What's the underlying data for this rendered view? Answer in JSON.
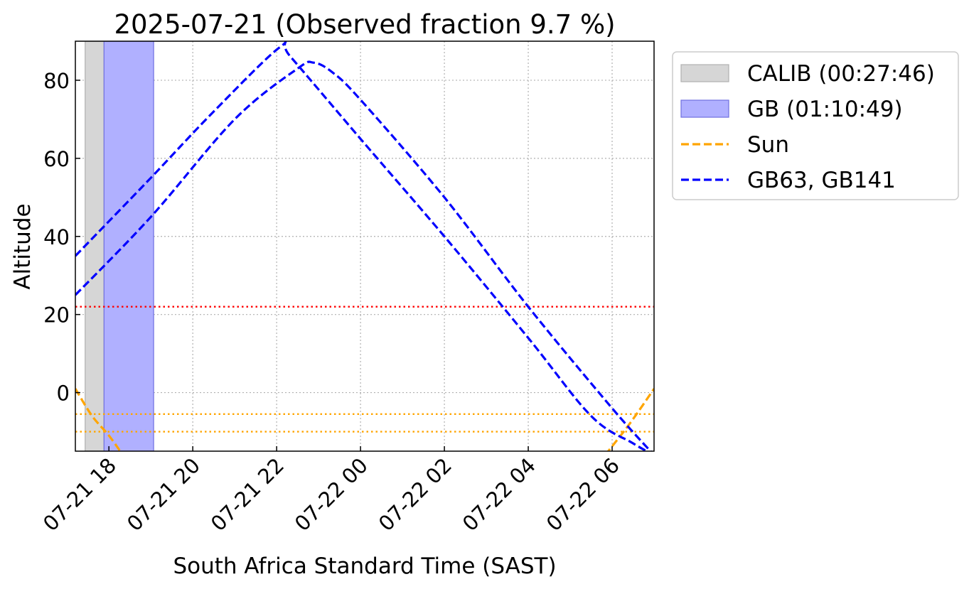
{
  "chart_data": {
    "type": "line",
    "title": "2025-07-21 (Observed fraction 9.7 %)",
    "xlabel": "South Africa Standard Time (SAST)",
    "ylabel": "Altitude",
    "x_range": [
      "2025-07-21 17:12",
      "2025-07-22 07:00"
    ],
    "ylim": [
      -15,
      90
    ],
    "xticks": [
      {
        "time": "2025-07-21 18:00",
        "label": "07-21 18"
      },
      {
        "time": "2025-07-21 20:00",
        "label": "07-21 20"
      },
      {
        "time": "2025-07-21 22:00",
        "label": "07-21 22"
      },
      {
        "time": "2025-07-22 00:00",
        "label": "07-22 00"
      },
      {
        "time": "2025-07-22 02:00",
        "label": "07-22 02"
      },
      {
        "time": "2025-07-22 04:00",
        "label": "07-22 04"
      },
      {
        "time": "2025-07-22 06:00",
        "label": "07-22 06"
      }
    ],
    "yticks": [
      0,
      20,
      40,
      60,
      80
    ],
    "grid": true,
    "legend_position": "outside-right-top",
    "spans": [
      {
        "name": "CALIB (00:27:46)",
        "start": "2025-07-21 17:26",
        "end": "2025-07-21 17:53",
        "color": "#d6d6d6",
        "edge": "#b0b0b0"
      },
      {
        "name": "GB (01:10:49)",
        "start": "2025-07-21 17:53",
        "end": "2025-07-21 19:04",
        "color": "#b0b0ff",
        "edge": "#7070e0"
      }
    ],
    "series": [
      {
        "name": "Sun",
        "color": "#ffa500",
        "style": "dashed",
        "points": [
          [
            "2025-07-21 17:12",
            1
          ],
          [
            "2025-07-21 17:36",
            -6
          ],
          [
            "2025-07-21 18:00",
            -11
          ],
          [
            "2025-07-21 18:20",
            -16
          ]
        ]
      },
      {
        "name": "Sun",
        "color": "#ffa500",
        "style": "dashed",
        "points": [
          [
            "2025-07-22 05:50",
            -16
          ],
          [
            "2025-07-22 06:25",
            -8
          ],
          [
            "2025-07-22 07:00",
            1
          ]
        ]
      },
      {
        "name": "GB63, GB141",
        "color": "#0000ff",
        "style": "dashed",
        "points": [
          [
            "2025-07-21 17:12",
            35
          ],
          [
            "2025-07-21 19:00",
            55
          ],
          [
            "2025-07-21 20:30",
            72
          ],
          [
            "2025-07-21 22:05",
            88.5
          ],
          [
            "2025-07-21 22:20",
            86
          ],
          [
            "2025-07-22 00:00",
            65
          ],
          [
            "2025-07-22 02:00",
            40
          ],
          [
            "2025-07-22 04:00",
            14
          ],
          [
            "2025-07-22 05:30",
            -6
          ],
          [
            "2025-07-22 06:30",
            -13
          ],
          [
            "2025-07-22 07:00",
            -16
          ]
        ]
      },
      {
        "name": "GB63, GB141",
        "color": "#0000ff",
        "style": "dashed",
        "points": [
          [
            "2025-07-21 17:12",
            25
          ],
          [
            "2025-07-21 19:00",
            45
          ],
          [
            "2025-07-21 21:00",
            70
          ],
          [
            "2025-07-21 22:30",
            83
          ],
          [
            "2025-07-21 22:53",
            84.5
          ],
          [
            "2025-07-21 23:20",
            82
          ],
          [
            "2025-07-22 00:00",
            75
          ],
          [
            "2025-07-22 02:00",
            50
          ],
          [
            "2025-07-22 04:00",
            22
          ],
          [
            "2025-07-22 06:00",
            -4
          ],
          [
            "2025-07-22 07:00",
            -16
          ]
        ]
      }
    ],
    "hlines": [
      {
        "y": 22,
        "color": "#ff0000",
        "style": "dotted"
      },
      {
        "y": -5.5,
        "color": "#ffa500",
        "style": "dotted"
      },
      {
        "y": -10,
        "color": "#ffa500",
        "style": "dotted"
      }
    ],
    "legend": [
      {
        "label": "CALIB (00:27:46)",
        "kind": "patch",
        "color": "#d6d6d6",
        "edge": "#b0b0b0"
      },
      {
        "label": "GB (01:10:49)",
        "kind": "patch",
        "color": "#b0b0ff",
        "edge": "#7070e0"
      },
      {
        "label": "Sun",
        "kind": "line",
        "color": "#ffa500"
      },
      {
        "label": "GB63, GB141",
        "kind": "line",
        "color": "#0000ff"
      }
    ]
  }
}
